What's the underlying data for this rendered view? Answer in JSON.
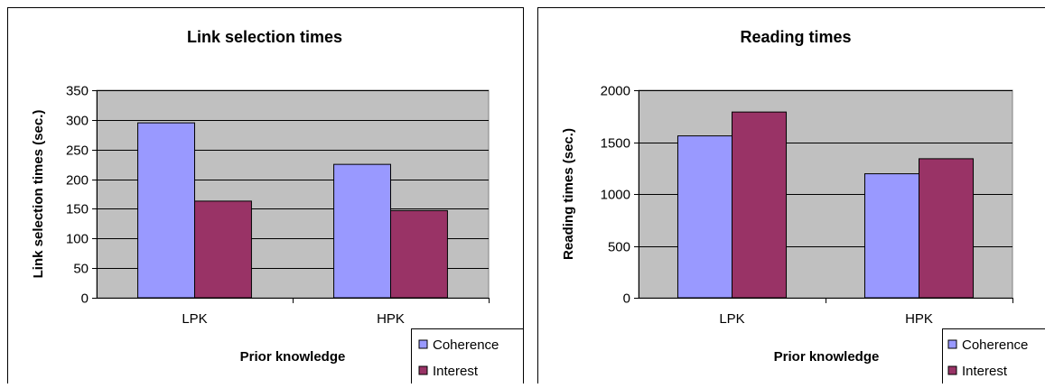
{
  "colors": {
    "coherence": "#9999ff",
    "interest": "#993366",
    "plot_bg": "#c0c0c0",
    "frame": "#000000"
  },
  "chart_data": [
    {
      "type": "bar",
      "title": "Link selection times",
      "xlabel": "Prior knowledge",
      "ylabel": "Link selection times (sec.)",
      "categories": [
        "LPK",
        "HPK"
      ],
      "series": [
        {
          "name": "Coherence",
          "values": [
            295,
            225
          ]
        },
        {
          "name": "Interest",
          "values": [
            163,
            147
          ]
        }
      ],
      "ylim": [
        0,
        350
      ],
      "yticks": [
        0,
        50,
        100,
        150,
        200,
        250,
        300,
        350
      ],
      "grid": true,
      "legend": "bottom-right"
    },
    {
      "type": "bar",
      "title": "Reading times",
      "xlabel": "Prior knowledge",
      "ylabel": "Reading times (sec.)",
      "categories": [
        "LPK",
        "HPK"
      ],
      "series": [
        {
          "name": "Coherence",
          "values": [
            1560,
            1195
          ]
        },
        {
          "name": "Interest",
          "values": [
            1790,
            1340
          ]
        }
      ],
      "ylim": [
        0,
        2000
      ],
      "yticks": [
        0,
        500,
        1000,
        1500,
        2000
      ],
      "grid": true,
      "legend": "bottom-right"
    }
  ]
}
